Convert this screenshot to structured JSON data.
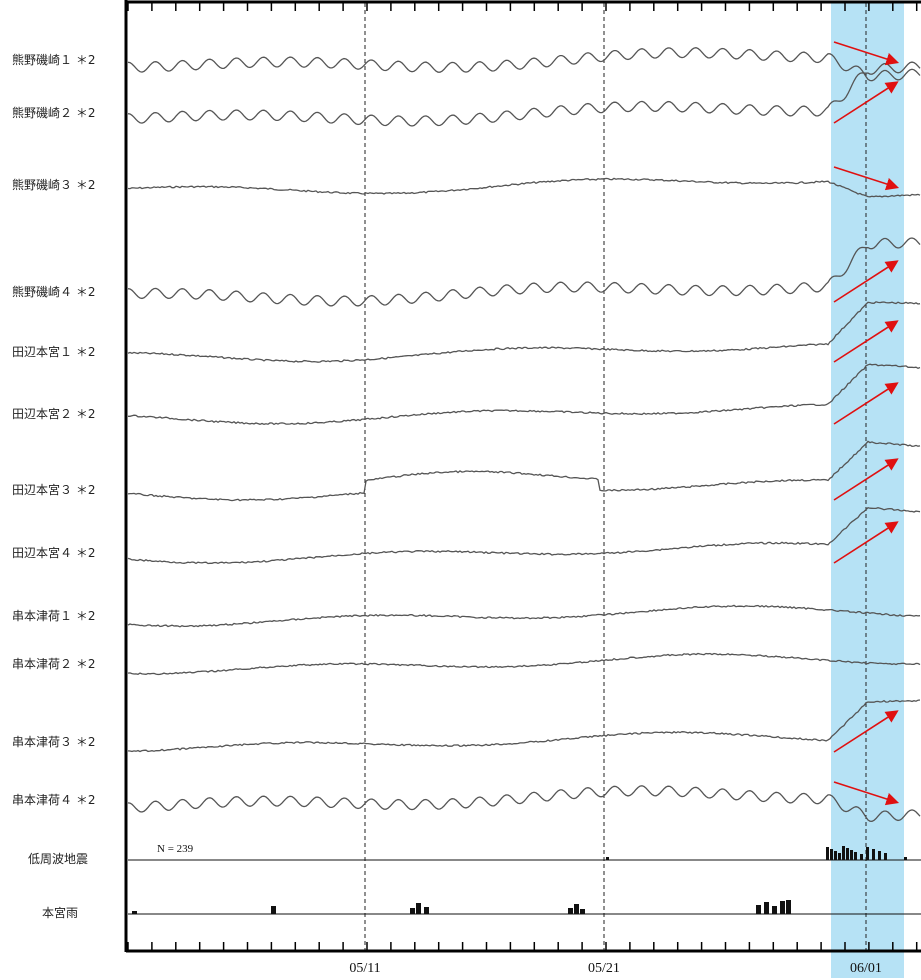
{
  "chart_data": {
    "type": "line",
    "x_axis": {
      "tick_labels": [
        "05/11",
        "05/21",
        "06/01"
      ],
      "range": [
        "05/01",
        "06/03"
      ]
    },
    "highlight_period": [
      "05/31",
      "06/03"
    ],
    "highlight_color": "#b6e2f5",
    "trace_color": "#555555",
    "arrow_color": "#e01010",
    "series": [
      {
        "name": "熊野磯崎１ ＊2",
        "direction": "down",
        "pattern": "wavy"
      },
      {
        "name": "熊野磯崎２ ＊2",
        "direction": "up",
        "pattern": "wavy"
      },
      {
        "name": "熊野磯崎３ ＊2",
        "direction": "down",
        "pattern": "smooth"
      },
      {
        "name": "熊野磯崎４ ＊2",
        "direction": "up",
        "pattern": "wavy"
      },
      {
        "name": "田辺本宮１ ＊2",
        "direction": "up",
        "pattern": "smooth"
      },
      {
        "name": "田辺本宮２ ＊2",
        "direction": "up",
        "pattern": "smooth"
      },
      {
        "name": "田辺本宮３ ＊2",
        "direction": "up",
        "pattern": "hump"
      },
      {
        "name": "田辺本宮４ ＊2",
        "direction": "up",
        "pattern": "smooth"
      },
      {
        "name": "串本津荷１ ＊2",
        "direction": "none",
        "pattern": "smooth"
      },
      {
        "name": "串本津荷２ ＊2",
        "direction": "none",
        "pattern": "smooth"
      },
      {
        "name": "串本津荷３ ＊2",
        "direction": "up",
        "pattern": "smooth"
      },
      {
        "name": "串本津荷４ ＊2",
        "direction": "down",
        "pattern": "wavy"
      }
    ],
    "bar_panels": [
      {
        "name": "低周波地震",
        "annotation": "N =   239"
      },
      {
        "name": "本宮雨",
        "annotation": ""
      }
    ]
  }
}
